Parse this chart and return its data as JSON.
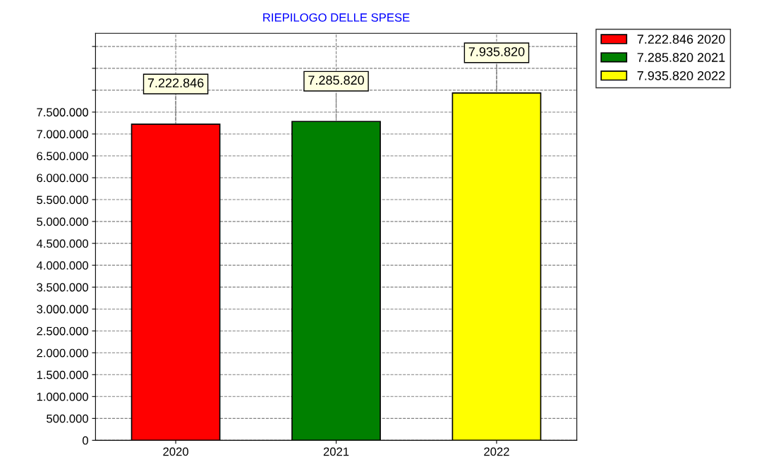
{
  "chart_data": {
    "type": "bar",
    "title": "RIEPILOGO DELLE SPESE",
    "categories": [
      "2020",
      "2021",
      "2022"
    ],
    "series": [
      {
        "name": "7.222.846 2020",
        "color": "#ff0000",
        "values": [
          7222846,
          null,
          null
        ],
        "value_labels": [
          "7.222.846",
          null,
          null
        ]
      },
      {
        "name": "7.285.820 2021",
        "color": "#008000",
        "values": [
          null,
          7285820,
          null
        ],
        "value_labels": [
          null,
          "7.285.820",
          null
        ]
      },
      {
        "name": "7.935.820 2022",
        "color": "#ffff00",
        "values": [
          null,
          null,
          7935820
        ],
        "value_labels": [
          null,
          null,
          "7.935.820"
        ]
      }
    ],
    "ylim": [
      0,
      9300000
    ],
    "yticks": [
      {
        "value": 0,
        "label": "0"
      },
      {
        "value": 500000,
        "label": "500.000"
      },
      {
        "value": 1000000,
        "label": "1.000.000"
      },
      {
        "value": 1500000,
        "label": "1.500.000"
      },
      {
        "value": 2000000,
        "label": "2.000.000"
      },
      {
        "value": 2500000,
        "label": "2.500.000"
      },
      {
        "value": 3000000,
        "label": "3.000.000"
      },
      {
        "value": 3500000,
        "label": "3.500.000"
      },
      {
        "value": 4000000,
        "label": "4.000.000"
      },
      {
        "value": 4500000,
        "label": "4.500.000"
      },
      {
        "value": 5000000,
        "label": "5.000.000"
      },
      {
        "value": 5500000,
        "label": "5.500.000"
      },
      {
        "value": 6000000,
        "label": "6.000.000"
      },
      {
        "value": 6500000,
        "label": "6.500.000"
      },
      {
        "value": 7000000,
        "label": "7.000.000"
      },
      {
        "value": 7500000,
        "label": "7.500.000"
      },
      {
        "value": 8000000,
        "label": null
      },
      {
        "value": 8500000,
        "label": null
      },
      {
        "value": 9000000,
        "label": null
      }
    ],
    "grid": true,
    "legend": "top right"
  }
}
